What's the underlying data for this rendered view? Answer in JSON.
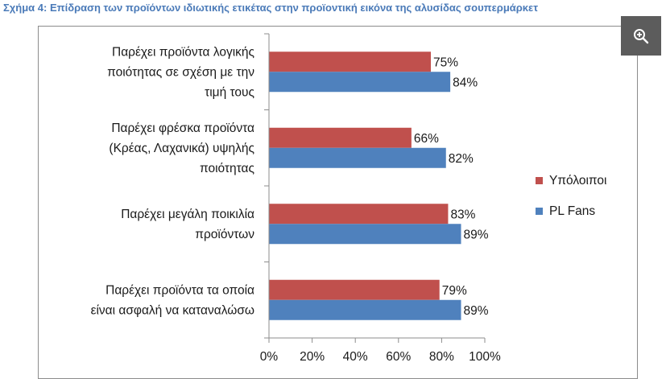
{
  "page": {
    "title": "Σχήμα 4: Επίδραση των προϊόντων ιδιωτικής ετικέτας στην προϊοντική εικόνα της αλυσίδας σουπερμάρκετ"
  },
  "zoom_button": {
    "icon": "zoom-in-icon"
  },
  "chart_data": {
    "type": "bar",
    "orientation": "horizontal",
    "title": "",
    "xlabel": "",
    "ylabel": "",
    "xlim": [
      0,
      100
    ],
    "ticks": [
      "0%",
      "20%",
      "40%",
      "60%",
      "80%",
      "100%"
    ],
    "grid": false,
    "legend_position": "right",
    "categories": [
      [
        "Παρέχει προϊόντα λογικής",
        "ποιότητας σε σχέση με την",
        "τιμή τους"
      ],
      [
        "Παρέχει φρέσκα προϊόντα",
        "(Κρέας, Λαχανικά) υψηλής",
        "ποιότητας"
      ],
      [
        "Παρέχει μεγάλη ποικιλία",
        "προϊόντων"
      ],
      [
        "Παρέχει προϊόντα τα οποία",
        "είναι ασφαλή να καταναλώσω"
      ]
    ],
    "series": [
      {
        "name": "Υπόλοιποι",
        "color": "#c0504d",
        "values": [
          75,
          66,
          83,
          79
        ],
        "labels": [
          "75%",
          "66%",
          "83%",
          "79%"
        ]
      },
      {
        "name": "PL Fans",
        "color": "#4f81bd",
        "values": [
          84,
          82,
          89,
          89
        ],
        "labels": [
          "84%",
          "82%",
          "89%",
          "89%"
        ]
      }
    ]
  }
}
